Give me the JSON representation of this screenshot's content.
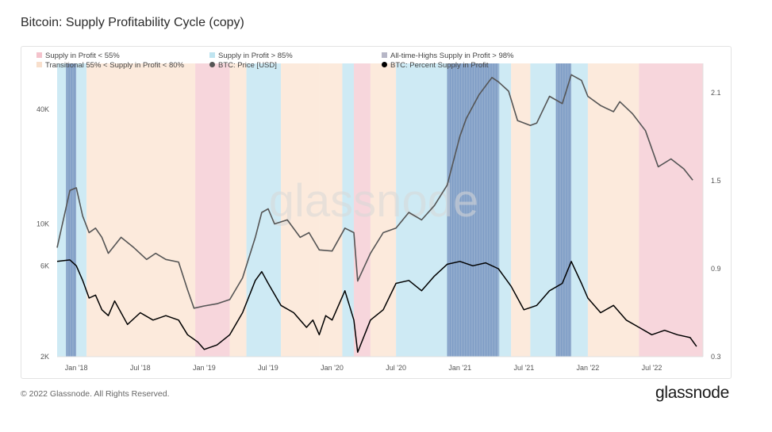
{
  "title": "Bitcoin: Supply Profitability Cycle (copy)",
  "footer": {
    "copyright": "© 2022 Glassnode. All Rights Reserved.",
    "logo": "glassnode"
  },
  "watermark": "glassnode",
  "colors": {
    "loss": "#f6cfd6",
    "transitional": "#fbe6d6",
    "profit": "#c6e6f2",
    "ath": "#7e9cc4",
    "price": "#555555",
    "percent": "#000000"
  },
  "chart_data": {
    "type": "line",
    "title": "Bitcoin: Supply Profitability Cycle (copy)",
    "legend": [
      {
        "label": "Supply in Profit < 55%",
        "color": "#f4c3cc",
        "marker": "square"
      },
      {
        "label": "Supply in Profit > 85%",
        "color": "#bfe4f0",
        "marker": "square"
      },
      {
        "label": "All-time-Highs Supply in Profit > 98%",
        "color": "#b7b7c7",
        "marker": "square"
      },
      {
        "label": "Transitional 55% < Supply in Profit < 80%",
        "color": "#f8dfcc",
        "marker": "square"
      },
      {
        "label": "BTC: Price [USD]",
        "color": "#555555",
        "marker": "circle"
      },
      {
        "label": "BTC: Percent Supply in Profit",
        "color": "#000000",
        "marker": "circle"
      }
    ],
    "legend_position": "top-left",
    "x_ticks": [
      "Jan '18",
      "Jul '18",
      "Jan '19",
      "Jul '19",
      "Jan '20",
      "Jul '20",
      "Jan '21",
      "Jul '21",
      "Jan '22",
      "Jul '22"
    ],
    "x_range": [
      "Nov '17",
      "Nov '22"
    ],
    "y_left": {
      "scale": "log",
      "ticks": [
        "2K",
        "6K",
        "10K",
        "40K"
      ],
      "tick_values": [
        2000,
        6000,
        10000,
        40000
      ],
      "range": [
        2000,
        70000
      ]
    },
    "y_right": {
      "ticks": [
        "0.3",
        "0.9",
        "1.5",
        "2.1"
      ],
      "tick_values": [
        0.3,
        0.9,
        1.5,
        2.1
      ],
      "range": [
        0.3,
        2.3
      ]
    },
    "regime_bands": [
      {
        "from": 2017.85,
        "to": 2017.92,
        "regime": "profit"
      },
      {
        "from": 2017.92,
        "to": 2018.0,
        "regime": "ath"
      },
      {
        "from": 2018.0,
        "to": 2018.08,
        "regime": "profit"
      },
      {
        "from": 2018.08,
        "to": 2018.93,
        "regime": "transitional"
      },
      {
        "from": 2018.93,
        "to": 2019.2,
        "regime": "loss"
      },
      {
        "from": 2019.2,
        "to": 2019.33,
        "regime": "transitional"
      },
      {
        "from": 2019.33,
        "to": 2019.6,
        "regime": "profit"
      },
      {
        "from": 2019.6,
        "to": 2019.9,
        "regime": "transitional"
      },
      {
        "from": 2019.9,
        "to": 2020.08,
        "regime": "transitional"
      },
      {
        "from": 2020.08,
        "to": 2020.17,
        "regime": "profit"
      },
      {
        "from": 2020.17,
        "to": 2020.3,
        "regime": "loss"
      },
      {
        "from": 2020.3,
        "to": 2020.5,
        "regime": "transitional"
      },
      {
        "from": 2020.5,
        "to": 2020.9,
        "regime": "profit"
      },
      {
        "from": 2020.9,
        "to": 2021.3,
        "regime": "ath"
      },
      {
        "from": 2021.3,
        "to": 2021.4,
        "regime": "profit"
      },
      {
        "from": 2021.4,
        "to": 2021.55,
        "regime": "transitional"
      },
      {
        "from": 2021.55,
        "to": 2021.75,
        "regime": "profit"
      },
      {
        "from": 2021.75,
        "to": 2021.87,
        "regime": "ath"
      },
      {
        "from": 2021.87,
        "to": 2022.0,
        "regime": "profit"
      },
      {
        "from": 2022.0,
        "to": 2022.4,
        "regime": "transitional"
      },
      {
        "from": 2022.4,
        "to": 2022.9,
        "regime": "loss"
      }
    ],
    "series": [
      {
        "name": "BTC: Price [USD]",
        "axis": "left",
        "x": [
          2017.85,
          2017.95,
          2018.0,
          2018.05,
          2018.1,
          2018.15,
          2018.2,
          2018.25,
          2018.35,
          2018.45,
          2018.55,
          2018.62,
          2018.7,
          2018.8,
          2018.87,
          2018.92,
          2019.0,
          2019.1,
          2019.2,
          2019.3,
          2019.4,
          2019.45,
          2019.5,
          2019.55,
          2019.65,
          2019.75,
          2019.82,
          2019.9,
          2020.0,
          2020.1,
          2020.17,
          2020.2,
          2020.3,
          2020.4,
          2020.5,
          2020.6,
          2020.7,
          2020.8,
          2020.9,
          2021.0,
          2021.05,
          2021.15,
          2021.25,
          2021.3,
          2021.38,
          2021.45,
          2021.55,
          2021.6,
          2021.7,
          2021.8,
          2021.87,
          2021.95,
          2022.0,
          2022.1,
          2022.2,
          2022.25,
          2022.35,
          2022.45,
          2022.55,
          2022.65,
          2022.75,
          2022.82
        ],
        "values": [
          7500,
          15000,
          15500,
          11000,
          9000,
          9500,
          8500,
          7000,
          8500,
          7500,
          6500,
          7000,
          6500,
          6300,
          4500,
          3600,
          3700,
          3800,
          4000,
          5200,
          8500,
          11500,
          12000,
          10000,
          10500,
          8500,
          9000,
          7300,
          7200,
          9500,
          9000,
          5000,
          7000,
          9000,
          9500,
          11500,
          10500,
          12500,
          16000,
          29000,
          36000,
          48000,
          59000,
          56000,
          50000,
          35000,
          33000,
          34000,
          47000,
          43000,
          61000,
          57000,
          47000,
          42000,
          39000,
          44000,
          38000,
          31000,
          20000,
          22000,
          19500,
          17000
        ]
      },
      {
        "name": "BTC: Percent Supply in Profit",
        "axis": "right",
        "x": [
          2017.85,
          2017.95,
          2018.0,
          2018.05,
          2018.1,
          2018.15,
          2018.2,
          2018.25,
          2018.3,
          2018.4,
          2018.5,
          2018.6,
          2018.7,
          2018.8,
          2018.87,
          2018.95,
          2019.0,
          2019.1,
          2019.2,
          2019.3,
          2019.4,
          2019.45,
          2019.5,
          2019.6,
          2019.7,
          2019.8,
          2019.85,
          2019.9,
          2019.95,
          2020.0,
          2020.1,
          2020.17,
          2020.2,
          2020.3,
          2020.4,
          2020.5,
          2020.6,
          2020.7,
          2020.8,
          2020.9,
          2021.0,
          2021.1,
          2021.2,
          2021.3,
          2021.4,
          2021.5,
          2021.6,
          2021.7,
          2021.8,
          2021.87,
          2021.95,
          2022.0,
          2022.1,
          2022.2,
          2022.3,
          2022.4,
          2022.5,
          2022.6,
          2022.7,
          2022.8,
          2022.85
        ],
        "values": [
          0.95,
          0.96,
          0.92,
          0.82,
          0.7,
          0.72,
          0.62,
          0.58,
          0.68,
          0.52,
          0.6,
          0.55,
          0.58,
          0.55,
          0.45,
          0.4,
          0.35,
          0.38,
          0.45,
          0.6,
          0.82,
          0.88,
          0.8,
          0.65,
          0.6,
          0.5,
          0.55,
          0.45,
          0.58,
          0.55,
          0.75,
          0.55,
          0.33,
          0.55,
          0.62,
          0.8,
          0.82,
          0.75,
          0.85,
          0.93,
          0.95,
          0.92,
          0.94,
          0.9,
          0.78,
          0.62,
          0.65,
          0.75,
          0.8,
          0.95,
          0.8,
          0.7,
          0.6,
          0.65,
          0.55,
          0.5,
          0.45,
          0.48,
          0.45,
          0.43,
          0.37
        ]
      }
    ]
  }
}
